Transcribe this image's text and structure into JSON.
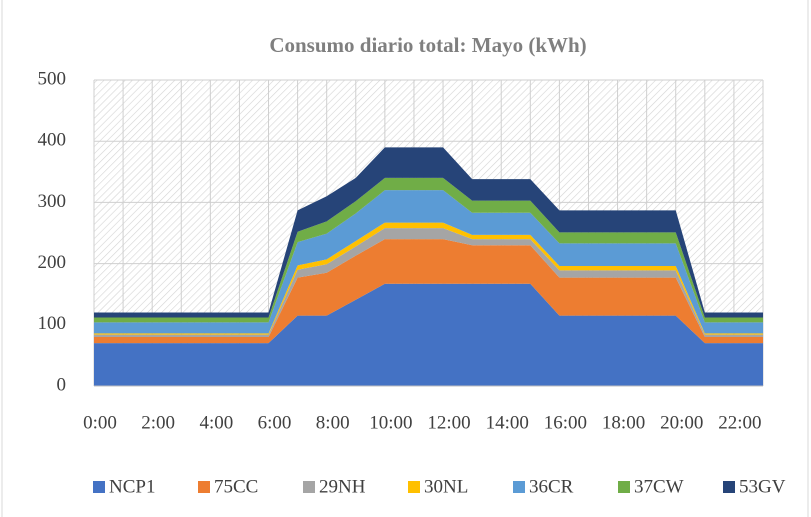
{
  "chart_data": {
    "type": "stacked_area",
    "title": "Consumo diario total: Mayo (kWh)",
    "categories": [
      "0:00",
      null,
      "2:00",
      null,
      "4:00",
      null,
      "6:00",
      null,
      "8:00",
      null,
      "10:00",
      null,
      "12:00",
      null,
      "14:00",
      null,
      "16:00",
      null,
      "18:00",
      null,
      "20:00",
      null,
      "22:00",
      null
    ],
    "series": [
      {
        "name": "NCP1",
        "color": "#4472c4",
        "values": [
          70,
          70,
          70,
          70,
          70,
          70,
          70,
          115,
          115,
          141,
          167,
          167,
          167,
          167,
          167,
          167,
          115,
          115,
          115,
          115,
          115,
          70,
          70,
          70
        ]
      },
      {
        "name": "75CC",
        "color": "#ed7d31",
        "values": [
          10,
          10,
          10,
          10,
          10,
          10,
          10,
          62,
          70,
          72,
          73,
          73,
          73,
          63,
          63,
          63,
          62,
          62,
          62,
          62,
          62,
          10,
          10,
          10
        ]
      },
      {
        "name": "29NH",
        "color": "#a5a5a5",
        "values": [
          4,
          4,
          4,
          4,
          4,
          4,
          4,
          13,
          14,
          15,
          18,
          18,
          18,
          10,
          10,
          10,
          12,
          12,
          12,
          12,
          12,
          4,
          4,
          4
        ]
      },
      {
        "name": "30NL",
        "color": "#ffc000",
        "values": [
          2,
          2,
          2,
          2,
          2,
          2,
          2,
          7,
          8,
          9,
          9,
          9,
          9,
          7,
          7,
          7,
          7,
          7,
          7,
          7,
          7,
          2,
          2,
          2
        ]
      },
      {
        "name": "36CR",
        "color": "#5b9bd5",
        "values": [
          18,
          18,
          18,
          18,
          18,
          18,
          18,
          38,
          42,
          45,
          53,
          53,
          53,
          36,
          36,
          36,
          37,
          37,
          37,
          37,
          37,
          18,
          18,
          18
        ]
      },
      {
        "name": "37CW",
        "color": "#70ad47",
        "values": [
          8,
          8,
          8,
          8,
          8,
          8,
          8,
          17,
          20,
          20,
          20,
          20,
          20,
          20,
          20,
          20,
          18,
          18,
          18,
          18,
          18,
          8,
          8,
          8
        ]
      },
      {
        "name": "53GV",
        "color": "#264478",
        "values": [
          8,
          8,
          8,
          8,
          8,
          8,
          8,
          35,
          41,
          38,
          50,
          50,
          50,
          35,
          35,
          35,
          36,
          36,
          36,
          36,
          36,
          8,
          8,
          8
        ]
      }
    ],
    "ylim": [
      0,
      500
    ],
    "yticks": [
      0,
      100,
      200,
      300,
      400,
      500
    ],
    "grid": true,
    "legend": "bottom"
  }
}
